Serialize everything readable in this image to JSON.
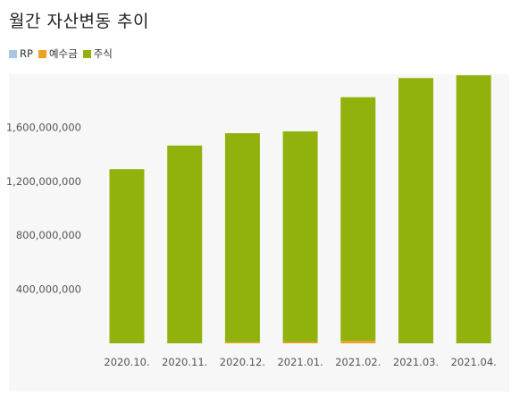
{
  "title": "월간 자산변동 추이",
  "legend": [
    {
      "name": "RP",
      "color": "#a7c6e8"
    },
    {
      "name": "예수금",
      "color": "#f0a020"
    },
    {
      "name": "주식",
      "color": "#91b20c"
    }
  ],
  "chart_data": {
    "type": "bar",
    "stacked": true,
    "title": "월간 자산변동 추이",
    "xlabel": "",
    "ylabel": "",
    "categories": [
      "2020.10.",
      "2020.11.",
      "2020.12.",
      "2021.01.",
      "2021.02.",
      "2021.03.",
      "2021.04."
    ],
    "y_ticks": [
      400000000,
      800000000,
      1200000000,
      1600000000
    ],
    "y_tick_labels": [
      "400,000,000",
      "800,000,000",
      "1,200,000,000",
      "1,600,000,000"
    ],
    "ylim": [
      0,
      1980000000
    ],
    "grid": false,
    "legend_position": "top-left",
    "series": [
      {
        "name": "RP",
        "color": "#a7c6e8",
        "values": [
          0,
          0,
          0,
          0,
          0,
          0,
          0
        ]
      },
      {
        "name": "예수금",
        "color": "#f0a020",
        "values": [
          0,
          0,
          8000000,
          10000000,
          18000000,
          0,
          0
        ]
      },
      {
        "name": "주식",
        "color": "#91b20c",
        "values": [
          1290000000,
          1465000000,
          1548000000,
          1560000000,
          1805000000,
          1965000000,
          1985000000
        ]
      }
    ]
  }
}
